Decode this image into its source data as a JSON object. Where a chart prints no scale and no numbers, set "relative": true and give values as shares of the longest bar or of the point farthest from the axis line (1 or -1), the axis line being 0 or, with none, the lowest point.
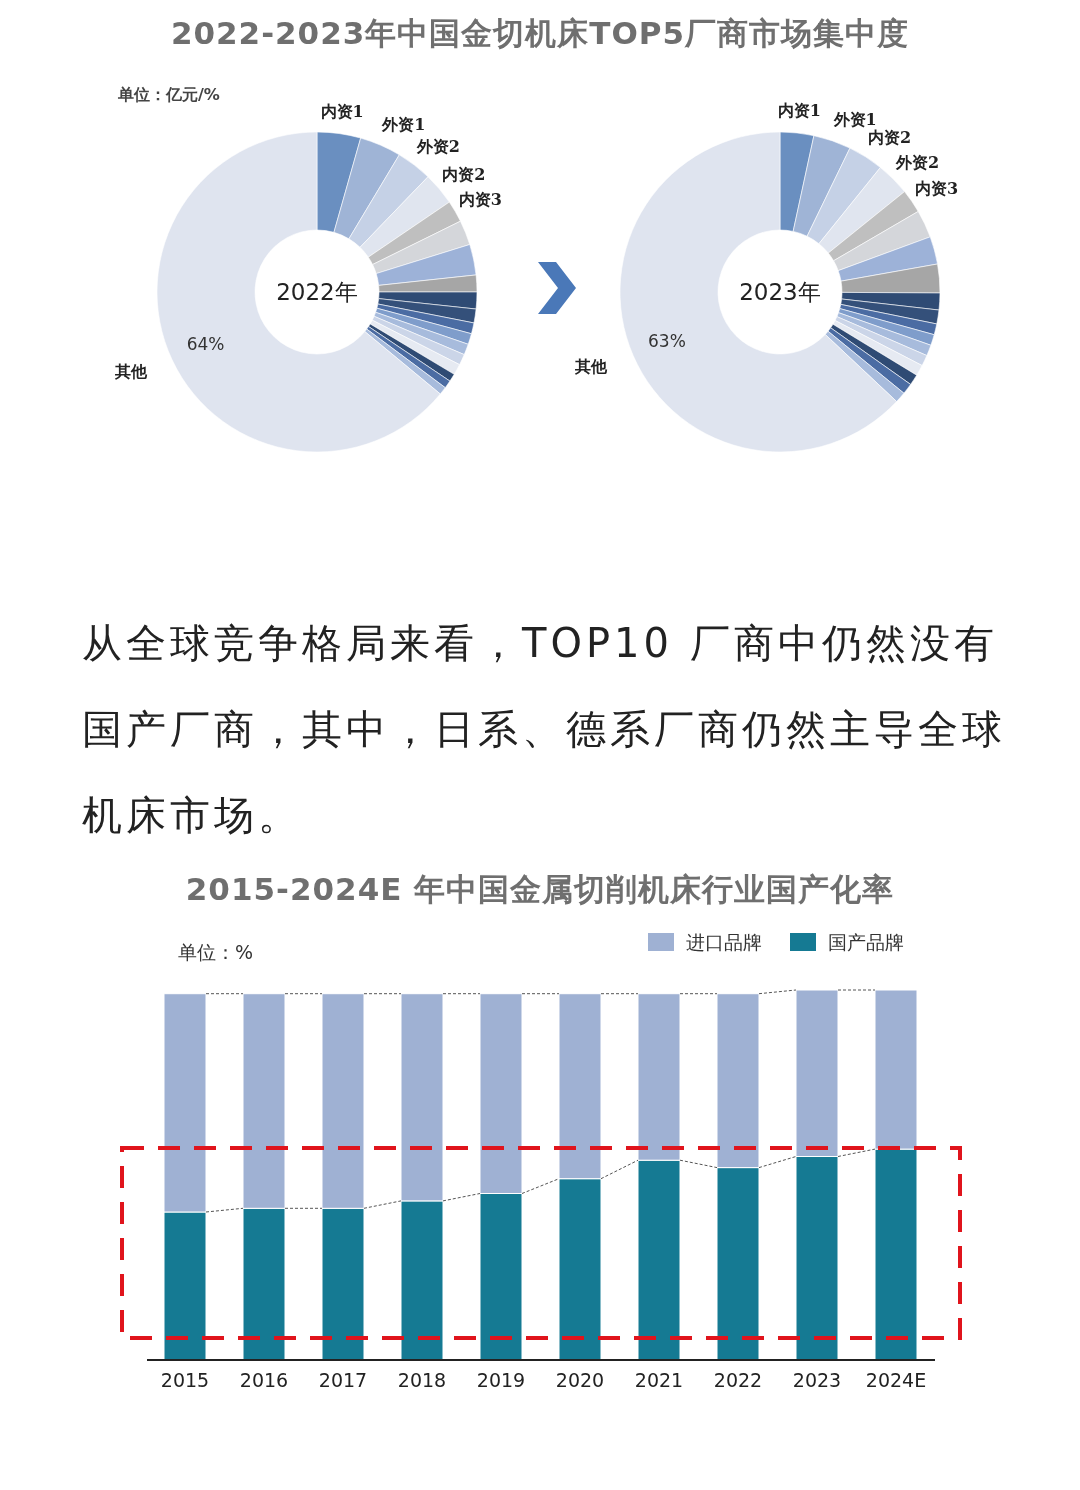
{
  "chart_data": [
    {
      "type": "donut",
      "title": "2022-2023年中国金切机床TOP5厂商市场集中度",
      "annotations": [
        "单位：亿元/%",
        "2022年"
      ],
      "categories": [
        "内资1",
        "外资1",
        "外资2",
        "内资2",
        "内资3",
        null,
        null,
        null,
        null,
        null,
        null,
        null,
        null,
        null,
        null,
        null,
        null,
        null,
        "其他"
      ],
      "values": [
        4.4,
        4.2,
        3.6,
        3.3,
        2.2,
        2.5,
        3.1,
        1.7,
        1.7,
        1.4,
        1.1,
        1.1,
        1.1,
        1.1,
        1.1,
        0.8,
        0.8,
        0.8,
        64
      ],
      "colors": [
        "#6a8fc0",
        "#9fb4d6",
        "#c5d1e6",
        "#e0e5ef",
        "#bfbfbf",
        "#d4d6da",
        "#9db2d8",
        "#a6a6a6",
        "#2f4b74",
        "#34507a",
        "#4b6ca3",
        "#7f9dcb",
        "#a7bbdc",
        "#cbd5e8",
        "#e6eaf2",
        "#2f4b74",
        "#4b6ca3",
        "#a7bbdc",
        "#dfe4ef"
      ],
      "value_labels": [
        null,
        null,
        null,
        null,
        null,
        null,
        null,
        null,
        null,
        null,
        null,
        null,
        null,
        null,
        null,
        null,
        null,
        null,
        "64%"
      ]
    },
    {
      "type": "donut",
      "annotations": [
        "2023年"
      ],
      "categories": [
        "内资1",
        "外资1",
        "内资2",
        "外资2",
        "内资3",
        null,
        null,
        null,
        null,
        null,
        null,
        null,
        null,
        null,
        null,
        null,
        null,
        null,
        "其他"
      ],
      "values": [
        3.4,
        3.8,
        3.6,
        3.4,
        2.4,
        2.8,
        2.8,
        2.9,
        1.7,
        1.4,
        1.1,
        1.1,
        1.1,
        1.1,
        1.1,
        1.1,
        1.1,
        1.1,
        63
      ],
      "colors": [
        "#6a8fc0",
        "#9fb4d6",
        "#c5d1e6",
        "#e0e5ef",
        "#bfbfbf",
        "#d4d6da",
        "#9db2d8",
        "#a6a6a6",
        "#2f4b74",
        "#34507a",
        "#4b6ca3",
        "#7f9dcb",
        "#a7bbdc",
        "#cbd5e8",
        "#e6eaf2",
        "#2f4b74",
        "#4b6ca3",
        "#a7bbdc",
        "#dfe4ef"
      ],
      "value_labels": [
        null,
        null,
        null,
        null,
        null,
        null,
        null,
        null,
        null,
        null,
        null,
        null,
        null,
        null,
        null,
        null,
        null,
        null,
        "63%"
      ]
    },
    {
      "type": "other",
      "annotations": [
        "从全球竞争格局来看，TOP10 厂商中仍然没有国产厂商，其中，日系、德系厂商仍然主导全球机床市场。"
      ]
    },
    {
      "type": "bar",
      "title": "2015-2024E 年中国金属切削机床行业国产化率",
      "annotations": [
        "单位：%"
      ],
      "categories": [
        "2015",
        "2016",
        "2017",
        "2018",
        "2019",
        "2020",
        "2021",
        "2022",
        "2023",
        "2024E"
      ],
      "stacked": true,
      "relative": true,
      "legend": "top right",
      "series": [
        {
          "name": "国产品牌",
          "color": "#157a93",
          "values": [
            0.4,
            0.41,
            0.41,
            0.43,
            0.45,
            0.49,
            0.54,
            0.52,
            0.55,
            0.57
          ]
        },
        {
          "name": "进口品牌",
          "color": "#9fb1d3",
          "values": [
            0.59,
            0.58,
            0.58,
            0.56,
            0.54,
            0.5,
            0.45,
            0.47,
            0.45,
            0.43
          ]
        }
      ]
    }
  ]
}
